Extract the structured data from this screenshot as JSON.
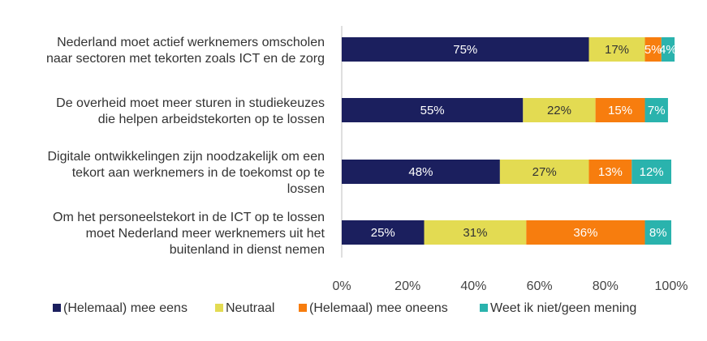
{
  "chart_data": {
    "type": "bar",
    "orientation": "horizontal",
    "stacked": true,
    "title": "",
    "xlabel": "",
    "ylabel": "",
    "xlim": [
      0,
      100
    ],
    "x_ticks": [
      "0%",
      "20%",
      "40%",
      "60%",
      "80%",
      "100%"
    ],
    "categories": [
      [
        "Nederland moet actief werknemers omscholen",
        "naar sectoren met tekorten zoals ICT en de zorg"
      ],
      [
        "De overheid moet meer sturen in studiekeuzes",
        "die helpen arbeidstekorten op te lossen"
      ],
      [
        "Digitale ontwikkelingen zijn noodzakelijk om een",
        "tekort aan werknemers in de toekomst op te",
        "lossen"
      ],
      [
        "Om het personeelstekort in de ICT op te lossen",
        "moet Nederland meer werknemers uit het",
        "buitenland in dienst nemen"
      ]
    ],
    "series": [
      {
        "name": "(Helemaal) mee eens",
        "color": "#1b1f5e",
        "label_color": "#ffffff",
        "values": [
          75,
          55,
          48,
          25
        ],
        "labels": [
          "75%",
          "55%",
          "48%",
          "25%"
        ]
      },
      {
        "name": "Neutraal",
        "color": "#e3db52",
        "label_color": "#333333",
        "values": [
          17,
          22,
          27,
          31
        ],
        "labels": [
          "17%",
          "22%",
          "27%",
          "31%"
        ]
      },
      {
        "name": "(Helemaal) mee oneens",
        "color": "#f77d0e",
        "label_color": "#ffffff",
        "values": [
          5,
          15,
          13,
          36
        ],
        "labels": [
          "5%",
          "15%",
          "13%",
          "36%"
        ]
      },
      {
        "name": "Weet ik niet/geen mening",
        "color": "#2ab3ad",
        "label_color": "#ffffff",
        "values": [
          4,
          7,
          12,
          8
        ],
        "labels": [
          "4%",
          "7%",
          "12%",
          "8%"
        ]
      }
    ],
    "legend_position": "bottom",
    "grid": false
  }
}
